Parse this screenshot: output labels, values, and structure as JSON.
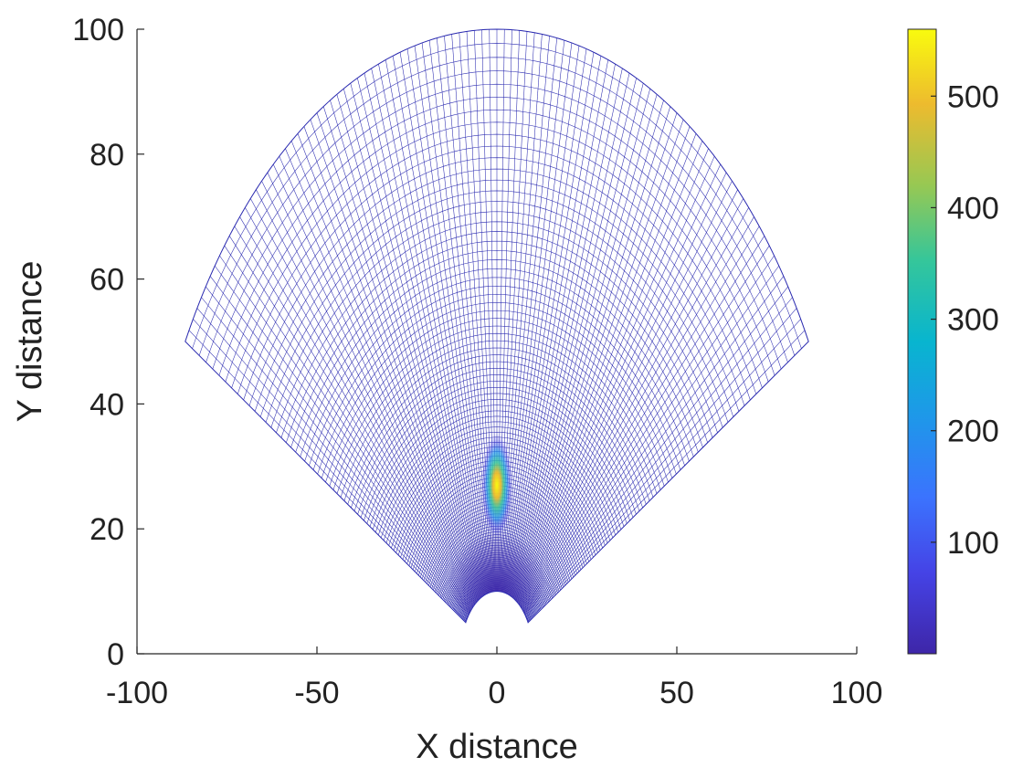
{
  "chart_data": {
    "type": "heatmap",
    "title": "",
    "xlabel": "X distance",
    "ylabel": "Y distance",
    "xlim": [
      -100,
      100
    ],
    "ylim": [
      0,
      100
    ],
    "x_ticks": [
      -100,
      -50,
      0,
      50,
      100
    ],
    "x_tick_labels": [
      "-100",
      "-50",
      "0",
      "50",
      "100"
    ],
    "y_ticks": [
      0,
      20,
      40,
      60,
      80,
      100
    ],
    "y_tick_labels": [
      "0",
      "20",
      "40",
      "60",
      "80",
      "100"
    ],
    "grid": false,
    "colormap": "parula",
    "colorbar": {
      "position": "right",
      "range": [
        0,
        560
      ],
      "ticks": [
        100,
        200,
        300,
        400,
        500
      ],
      "tick_labels": [
        "100",
        "200",
        "300",
        "400",
        "500"
      ]
    },
    "domain": {
      "shape": "annular sector",
      "inner_radius": 10,
      "outer_radius": 100,
      "angle_from_deg": 30,
      "angle_to_deg": 150,
      "mesh_lines": "dark blue wire mesh, radial and circumferential"
    },
    "peak": {
      "x": 0,
      "y": 27,
      "value": 560
    },
    "colors": {
      "mesh": "#2b2bb0",
      "low": "#3e26a8",
      "high": "#f9fb0e"
    }
  }
}
